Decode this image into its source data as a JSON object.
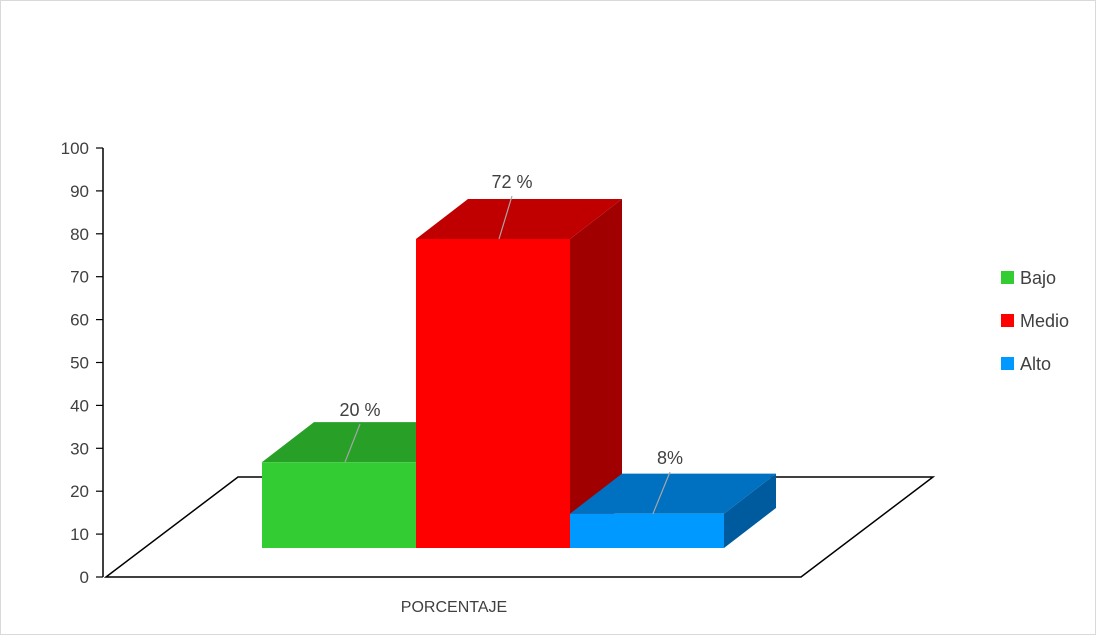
{
  "chart_data": {
    "type": "bar",
    "categories": [
      "PORCENTAJE"
    ],
    "series": [
      {
        "name": "Bajo",
        "values": [
          20
        ],
        "label": "20 %",
        "color": "#33cc33",
        "top_color": "#28a028",
        "side_color": "#1f7f1f"
      },
      {
        "name": "Medio",
        "values": [
          72
        ],
        "label": "72 %",
        "color": "#ff0000",
        "top_color": "#c00000",
        "side_color": "#a00000"
      },
      {
        "name": "Alto",
        "values": [
          8
        ],
        "label": "8%",
        "color": "#0099ff",
        "top_color": "#0070c0",
        "side_color": "#005a9e"
      }
    ],
    "title": "",
    "xlabel": "",
    "ylabel": "",
    "ylim": [
      0,
      100
    ],
    "yticks": [
      "0",
      "10",
      "20",
      "30",
      "40",
      "50",
      "60",
      "70",
      "80",
      "90",
      "100"
    ],
    "legend_position": "right",
    "grid": false
  }
}
